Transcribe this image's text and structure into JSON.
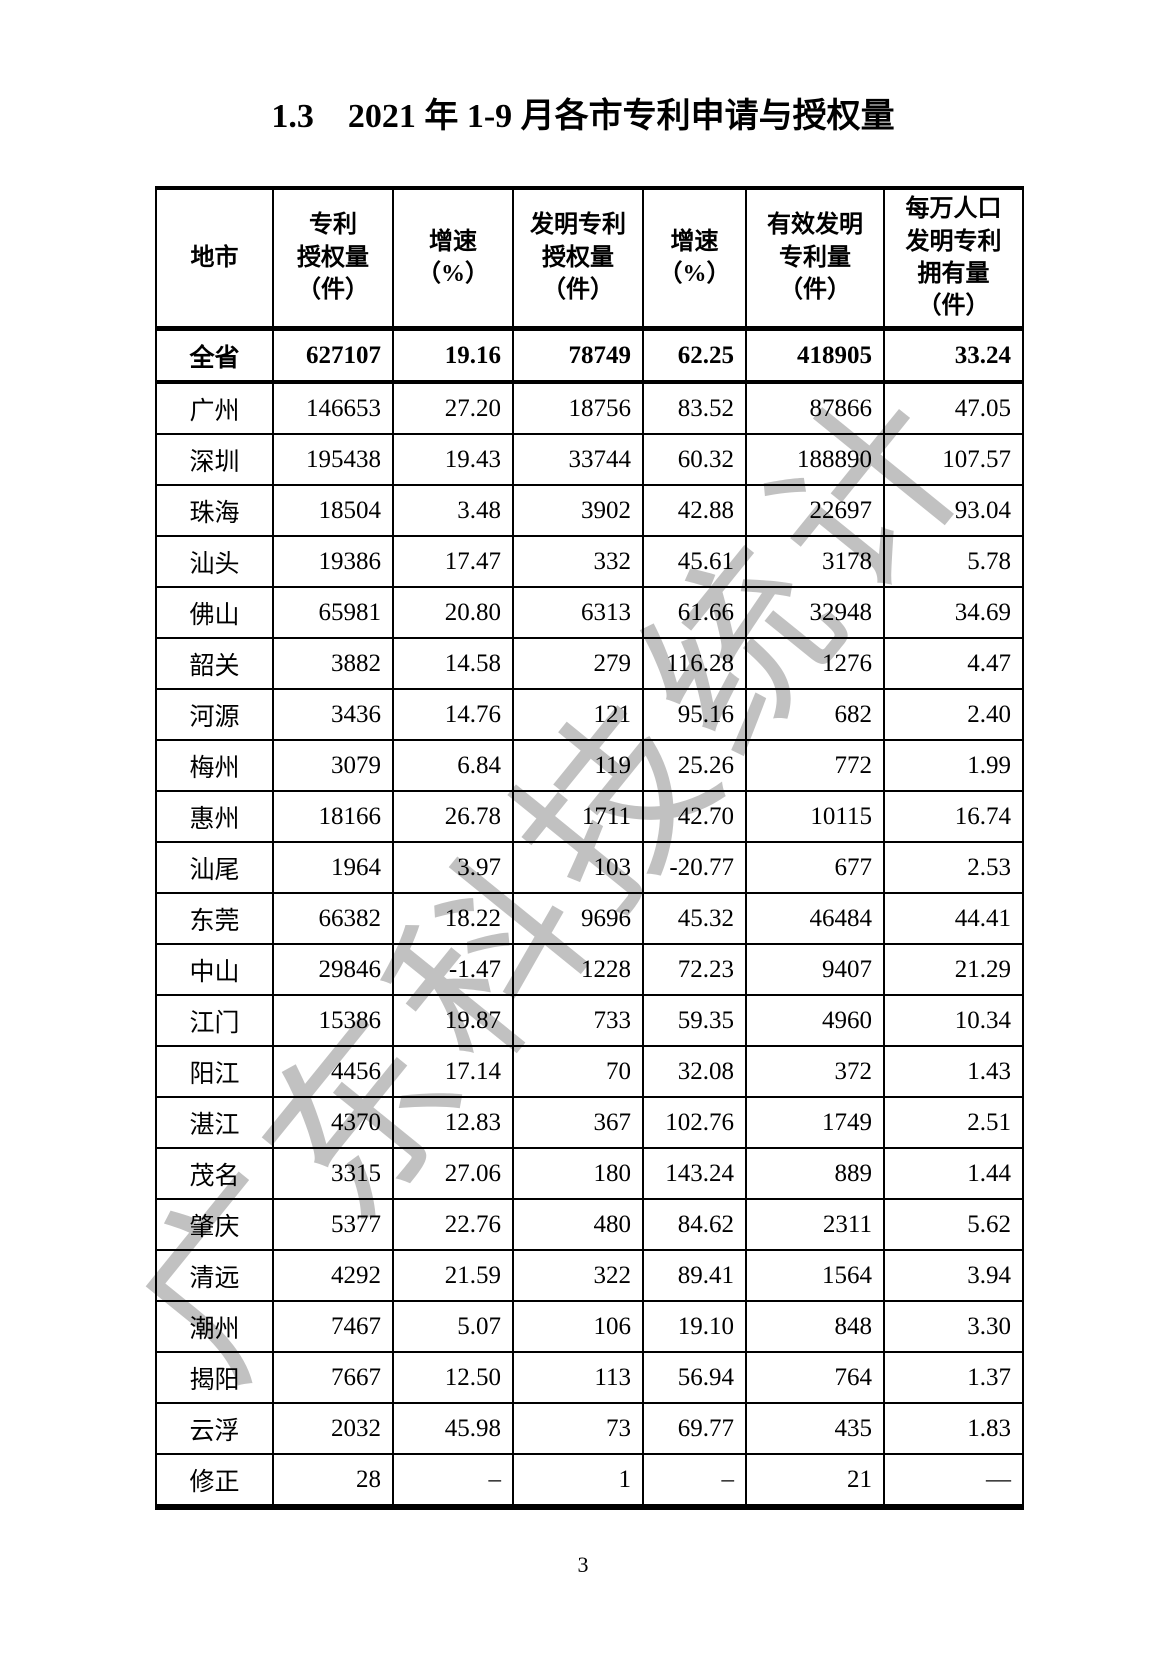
{
  "page": {
    "title": "1.3    2021 年 1-9 月各市专利申请与授权量",
    "page_number": "3",
    "watermark_text": "广东科技统计",
    "watermark_color": "#b7b7b7"
  },
  "table": {
    "headers": [
      "地市",
      "专利\n授权量\n（件）",
      "增速\n（%）",
      "发明专利\n授权量\n（件）",
      "增速\n（%）",
      "有效发明\n专利量\n（件）",
      "每万人口\n发明专利\n拥有量\n（件）"
    ],
    "rows": [
      {
        "city": "全省",
        "bold": true,
        "values": [
          "627107",
          "19.16",
          "78749",
          "62.25",
          "418905",
          "33.24"
        ]
      },
      {
        "city": "广州",
        "bold": false,
        "values": [
          "146653",
          "27.20",
          "18756",
          "83.52",
          "87866",
          "47.05"
        ]
      },
      {
        "city": "深圳",
        "bold": false,
        "values": [
          "195438",
          "19.43",
          "33744",
          "60.32",
          "188890",
          "107.57"
        ]
      },
      {
        "city": "珠海",
        "bold": false,
        "values": [
          "18504",
          "3.48",
          "3902",
          "42.88",
          "22697",
          "93.04"
        ]
      },
      {
        "city": "汕头",
        "bold": false,
        "values": [
          "19386",
          "17.47",
          "332",
          "45.61",
          "3178",
          "5.78"
        ]
      },
      {
        "city": "佛山",
        "bold": false,
        "values": [
          "65981",
          "20.80",
          "6313",
          "61.66",
          "32948",
          "34.69"
        ]
      },
      {
        "city": "韶关",
        "bold": false,
        "values": [
          "3882",
          "14.58",
          "279",
          "116.28",
          "1276",
          "4.47"
        ]
      },
      {
        "city": "河源",
        "bold": false,
        "values": [
          "3436",
          "14.76",
          "121",
          "95.16",
          "682",
          "2.40"
        ]
      },
      {
        "city": "梅州",
        "bold": false,
        "values": [
          "3079",
          "6.84",
          "119",
          "25.26",
          "772",
          "1.99"
        ]
      },
      {
        "city": "惠州",
        "bold": false,
        "values": [
          "18166",
          "26.78",
          "1711",
          "42.70",
          "10115",
          "16.74"
        ]
      },
      {
        "city": "汕尾",
        "bold": false,
        "values": [
          "1964",
          "3.97",
          "103",
          "-20.77",
          "677",
          "2.53"
        ]
      },
      {
        "city": "东莞",
        "bold": false,
        "values": [
          "66382",
          "18.22",
          "9696",
          "45.32",
          "46484",
          "44.41"
        ]
      },
      {
        "city": "中山",
        "bold": false,
        "values": [
          "29846",
          "-1.47",
          "1228",
          "72.23",
          "9407",
          "21.29"
        ]
      },
      {
        "city": "江门",
        "bold": false,
        "values": [
          "15386",
          "19.87",
          "733",
          "59.35",
          "4960",
          "10.34"
        ]
      },
      {
        "city": "阳江",
        "bold": false,
        "values": [
          "4456",
          "17.14",
          "70",
          "32.08",
          "372",
          "1.43"
        ]
      },
      {
        "city": "湛江",
        "bold": false,
        "values": [
          "4370",
          "12.83",
          "367",
          "102.76",
          "1749",
          "2.51"
        ]
      },
      {
        "city": "茂名",
        "bold": false,
        "values": [
          "3315",
          "27.06",
          "180",
          "143.24",
          "889",
          "1.44"
        ]
      },
      {
        "city": "肇庆",
        "bold": false,
        "values": [
          "5377",
          "22.76",
          "480",
          "84.62",
          "2311",
          "5.62"
        ]
      },
      {
        "city": "清远",
        "bold": false,
        "values": [
          "4292",
          "21.59",
          "322",
          "89.41",
          "1564",
          "3.94"
        ]
      },
      {
        "city": "潮州",
        "bold": false,
        "values": [
          "7467",
          "5.07",
          "106",
          "19.10",
          "848",
          "3.30"
        ]
      },
      {
        "city": "揭阳",
        "bold": false,
        "values": [
          "7667",
          "12.50",
          "113",
          "56.94",
          "764",
          "1.37"
        ]
      },
      {
        "city": "云浮",
        "bold": false,
        "values": [
          "2032",
          "45.98",
          "73",
          "69.77",
          "435",
          "1.83"
        ]
      },
      {
        "city": "修正",
        "bold": false,
        "values": [
          "28",
          "–",
          "1",
          "–",
          "21",
          "—"
        ]
      }
    ]
  }
}
